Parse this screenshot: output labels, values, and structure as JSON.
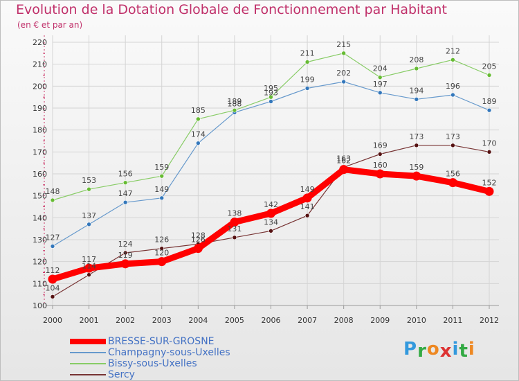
{
  "chart_data": {
    "type": "line",
    "title": "Evolution de la Dotation Globale de Fonctionnement par Habitant",
    "subtitle": "(en € et par an)",
    "xlabel": "",
    "ylabel": "",
    "x": [
      "2000",
      "2001",
      "2002",
      "2003",
      "2004",
      "2005",
      "2006",
      "2007",
      "2008",
      "2009",
      "2010",
      "2011",
      "2012"
    ],
    "ylim": [
      100,
      220
    ],
    "yticks": [
      100,
      110,
      120,
      130,
      140,
      150,
      160,
      170,
      180,
      190,
      200,
      210,
      220
    ],
    "grid": true,
    "legend": "bottom-left",
    "series": [
      {
        "name": "BRESSE-SUR-GROSNE",
        "color": "#ff0000",
        "values": [
          112,
          117,
          119,
          120,
          126,
          138,
          142,
          149,
          162,
          160,
          159,
          156,
          152
        ]
      },
      {
        "name": "Champagny-sous-Uxelles",
        "color": "#6699cc",
        "values": [
          127,
          137,
          147,
          149,
          174,
          188,
          193,
          199,
          202,
          197,
          194,
          196,
          189
        ]
      },
      {
        "name": "Bissy-sous-Uxelles",
        "color": "#88cc66",
        "values": [
          148,
          153,
          156,
          159,
          185,
          189,
          195,
          211,
          215,
          204,
          208,
          212,
          205
        ]
      },
      {
        "name": "Sercy",
        "color": "#773333",
        "values": [
          104,
          114,
          124,
          126,
          128,
          131,
          134,
          141,
          163,
          169,
          173,
          173,
          170
        ]
      }
    ]
  },
  "logo": {
    "letters": [
      "P",
      "r",
      "o",
      "x",
      "i",
      "t",
      "i"
    ],
    "colors": [
      "#3399dd",
      "#33aa44",
      "#ee8822",
      "#dd3333",
      "#3399dd",
      "#33aa44",
      "#ee8822"
    ]
  }
}
